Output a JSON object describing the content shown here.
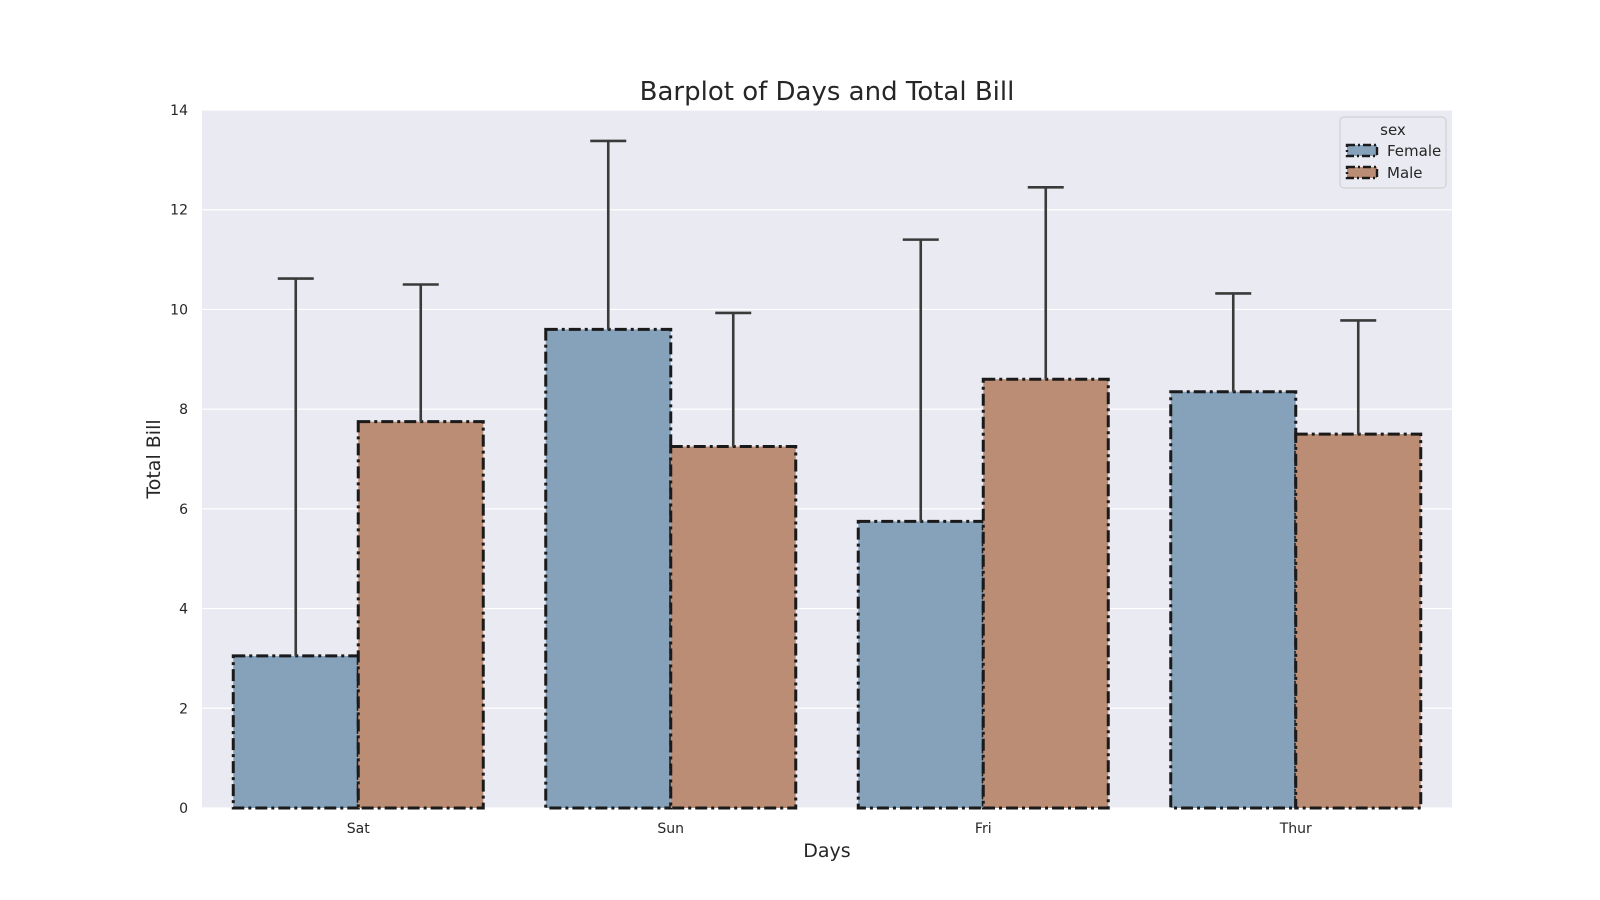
{
  "chart_data": {
    "type": "bar",
    "title": "Barplot of Days and Total Bill",
    "xlabel": "Days",
    "ylabel": "Total Bill",
    "categories": [
      "Sat",
      "Sun",
      "Fri",
      "Thur"
    ],
    "ylim": [
      0,
      14
    ],
    "yticks": [
      0,
      2,
      4,
      6,
      8,
      10,
      12,
      14
    ],
    "grid": true,
    "legend": {
      "title": "sex",
      "placement": "top-right"
    },
    "series": [
      {
        "name": "Female",
        "color": "#86a1ba",
        "values": [
          3.05,
          9.6,
          5.75,
          8.35
        ],
        "error_upper": [
          10.62,
          13.38,
          11.4,
          10.32
        ]
      },
      {
        "name": "Male",
        "color": "#bc8d75",
        "values": [
          7.75,
          7.25,
          8.6,
          7.5
        ],
        "error_upper": [
          10.5,
          9.93,
          12.45,
          9.78
        ]
      }
    ],
    "colors": {
      "plot_background": "#eaeaf2",
      "grid": "#ffffff",
      "bar_edge": "#1a1a1a",
      "error_bar": "#3a3a3a"
    }
  }
}
